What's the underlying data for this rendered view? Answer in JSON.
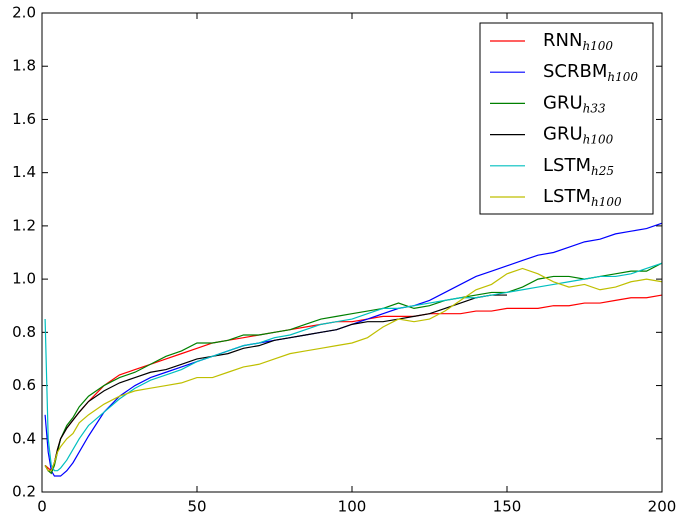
{
  "chart_data": {
    "type": "line",
    "x": [
      1,
      2,
      3,
      4,
      5,
      6,
      8,
      10,
      12,
      15,
      20,
      25,
      30,
      35,
      40,
      45,
      50,
      55,
      60,
      65,
      70,
      75,
      80,
      85,
      90,
      95,
      100,
      105,
      110,
      115,
      120,
      125,
      130,
      135,
      140,
      145,
      150,
      155,
      160,
      165,
      170,
      175,
      180,
      185,
      190,
      195,
      200
    ],
    "series": [
      {
        "name": "RNN",
        "subscript": "h100",
        "color": "#ff0000",
        "values": [
          0.3,
          0.29,
          0.28,
          0.31,
          0.36,
          0.4,
          0.44,
          0.47,
          0.5,
          0.54,
          0.6,
          0.64,
          0.66,
          0.68,
          0.7,
          0.72,
          0.74,
          0.76,
          0.77,
          0.78,
          0.79,
          0.8,
          0.81,
          0.82,
          0.83,
          0.84,
          0.84,
          0.85,
          0.86,
          0.86,
          0.86,
          0.87,
          0.87,
          0.87,
          0.88,
          0.88,
          0.89,
          0.89,
          0.89,
          0.9,
          0.9,
          0.91,
          0.91,
          0.92,
          0.93,
          0.93,
          0.94
        ]
      },
      {
        "name": "SCRBM",
        "subscript": "h100",
        "color": "#0000ff",
        "values": [
          0.49,
          0.35,
          0.28,
          0.26,
          0.26,
          0.26,
          0.28,
          0.31,
          0.35,
          0.41,
          0.5,
          0.56,
          0.6,
          0.63,
          0.65,
          0.67,
          0.69,
          0.71,
          0.73,
          0.75,
          0.76,
          0.77,
          0.78,
          0.79,
          0.8,
          0.81,
          0.83,
          0.85,
          0.87,
          0.89,
          0.9,
          0.92,
          0.95,
          0.98,
          1.01,
          1.03,
          1.05,
          1.07,
          1.09,
          1.1,
          1.12,
          1.14,
          1.15,
          1.17,
          1.18,
          1.19,
          1.21
        ]
      },
      {
        "name": "GRU",
        "subscript": "h33",
        "color": "#008000",
        "values": [
          0.3,
          0.28,
          0.27,
          0.3,
          0.35,
          0.4,
          0.45,
          0.48,
          0.52,
          0.56,
          0.6,
          0.63,
          0.65,
          0.68,
          0.71,
          0.73,
          0.76,
          0.76,
          0.77,
          0.79,
          0.79,
          0.8,
          0.81,
          0.83,
          0.85,
          0.86,
          0.87,
          0.88,
          0.89,
          0.91,
          0.89,
          0.9,
          0.92,
          0.93,
          0.94,
          0.95,
          0.95,
          0.97,
          1.0,
          1.01,
          1.01,
          1.0,
          1.01,
          1.02,
          1.03,
          1.03,
          1.06
        ]
      },
      {
        "name": "GRU",
        "subscript": "h100",
        "color": "#000000",
        "values": [
          0.3,
          0.28,
          0.28,
          0.31,
          0.36,
          0.4,
          0.44,
          0.47,
          0.5,
          0.54,
          0.58,
          0.61,
          0.63,
          0.65,
          0.66,
          0.68,
          0.7,
          0.71,
          0.72,
          0.74,
          0.75,
          0.77,
          0.78,
          0.79,
          0.8,
          0.81,
          0.83,
          0.84,
          0.84,
          0.85,
          0.86,
          0.87,
          0.89,
          0.91,
          0.93,
          0.94,
          0.94,
          null,
          null,
          null,
          null,
          null,
          null,
          null,
          null,
          null,
          null
        ]
      },
      {
        "name": "LSTM",
        "subscript": "h25",
        "color": "#00bfbf",
        "values": [
          0.85,
          0.4,
          0.3,
          0.28,
          0.28,
          0.29,
          0.32,
          0.36,
          0.4,
          0.45,
          0.5,
          0.55,
          0.59,
          0.62,
          0.64,
          0.66,
          0.69,
          0.71,
          0.73,
          0.75,
          0.76,
          0.78,
          0.79,
          0.81,
          0.83,
          0.84,
          0.85,
          0.87,
          0.89,
          0.89,
          0.9,
          0.91,
          0.92,
          0.93,
          0.93,
          0.94,
          0.95,
          0.96,
          0.97,
          0.98,
          0.99,
          1.0,
          1.01,
          1.01,
          1.02,
          1.04,
          1.06
        ]
      },
      {
        "name": "LSTM",
        "subscript": "h100",
        "color": "#bfbf00",
        "values": [
          0.3,
          0.28,
          0.28,
          0.31,
          0.35,
          0.37,
          0.4,
          0.42,
          0.46,
          0.49,
          0.53,
          0.56,
          0.58,
          0.59,
          0.6,
          0.61,
          0.63,
          0.63,
          0.65,
          0.67,
          0.68,
          0.7,
          0.72,
          0.73,
          0.74,
          0.75,
          0.76,
          0.78,
          0.82,
          0.85,
          0.84,
          0.85,
          0.88,
          0.92,
          0.96,
          0.98,
          1.02,
          1.04,
          1.02,
          0.99,
          0.97,
          0.98,
          0.96,
          0.97,
          0.99,
          1.0,
          0.99
        ]
      }
    ],
    "xlim": [
      0,
      200
    ],
    "xticks": [
      0,
      50,
      100,
      150,
      200
    ],
    "ylim": [
      0.2,
      2.0
    ],
    "yticks": [
      0.2,
      0.4,
      0.6,
      0.8,
      {
        "value": 1.0,
        "label": "1.0"
      },
      1.2,
      1.4,
      1.6,
      1.8,
      {
        "value": 2.0,
        "label": "2.0"
      }
    ],
    "grid": false,
    "legend": "upper right"
  }
}
